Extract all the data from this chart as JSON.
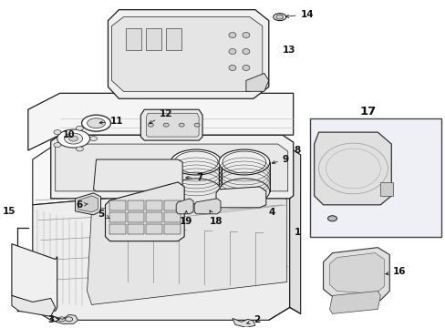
{
  "bg": "#ffffff",
  "lc": "#1a1a1a",
  "fig_w": 4.89,
  "fig_h": 3.6,
  "dpi": 100,
  "label_fs": 7.5,
  "label_fw": "bold",
  "box17_color": "#e8eaf0",
  "part_fill": "#f2f2f2",
  "part_fill2": "#e8e8e8",
  "part_fill3": "#dedede"
}
